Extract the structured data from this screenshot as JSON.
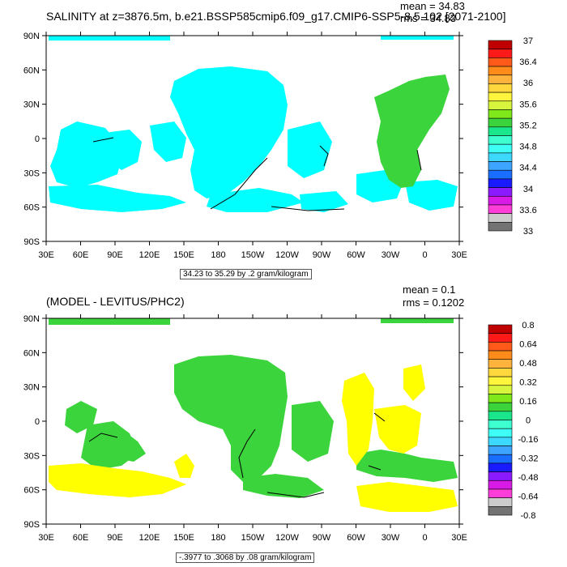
{
  "chart_data": [
    {
      "type": "heatmap",
      "title": "SALINITY at z=3876.5m, b.e21.BSSP585cmip6.f09_g17.CMIP6-SSP5-8.5.102 [2071-2100]",
      "mean_label": "mean = 34.83",
      "rms_label": "rms = 34.83",
      "contour_note": "34.23 to 35.29 by .2 gram/kilogram",
      "x_ticks": [
        "30E",
        "60E",
        "90E",
        "120E",
        "150E",
        "180",
        "150W",
        "120W",
        "90W",
        "60W",
        "30W",
        "0",
        "30E"
      ],
      "y_ticks": [
        "90N",
        "60N",
        "30N",
        "0",
        "30S",
        "60S",
        "90S"
      ],
      "colorbar": {
        "labels": [
          "37",
          "36.4",
          "36",
          "35.6",
          "35.2",
          "34.8",
          "34.4",
          "34",
          "33.6",
          "33"
        ],
        "colors": [
          "#c00000",
          "#ff1a1a",
          "#ff5a1a",
          "#ff8c1a",
          "#ffb33d",
          "#ffd83d",
          "#fff53d",
          "#d8f53d",
          "#7ee81a",
          "#3cd43c",
          "#1ae68c",
          "#3dffd0",
          "#3dfff5",
          "#3dd8ff",
          "#3da5ff",
          "#1a6eff",
          "#1a1aff",
          "#8c1aff",
          "#d81ae6",
          "#ff3dd8",
          "#cccccc",
          "#737373"
        ]
      },
      "field_color": "#00ffff"
    },
    {
      "type": "heatmap",
      "title": "(MODEL - LEVITUS/PHC2)",
      "mean_label": "mean = 0.1",
      "rms_label": "rms = 0.1202",
      "contour_note": "-.3977 to .3068 by .08 gram/kilogram",
      "x_ticks": [
        "30E",
        "60E",
        "90E",
        "120E",
        "150E",
        "180",
        "150W",
        "120W",
        "90W",
        "60W",
        "30W",
        "0",
        "30E"
      ],
      "y_ticks": [
        "90N",
        "60N",
        "30N",
        "0",
        "30S",
        "60S",
        "90S"
      ],
      "colorbar": {
        "labels": [
          "0.8",
          "0.64",
          "0.48",
          "0.32",
          "0.16",
          "0",
          "-0.16",
          "-0.32",
          "-0.48",
          "-0.64",
          "-0.8"
        ],
        "colors": [
          "#c00000",
          "#ff1a1a",
          "#ff5a1a",
          "#ff8c1a",
          "#ffb33d",
          "#ffd83d",
          "#fff53d",
          "#d8f53d",
          "#7ee81a",
          "#3cd43c",
          "#1ae68c",
          "#3dffd0",
          "#3dfff5",
          "#3dd8ff",
          "#3da5ff",
          "#1a6eff",
          "#1a1aff",
          "#8c1aff",
          "#d81ae6",
          "#ff3dd8",
          "#cccccc",
          "#737373"
        ]
      },
      "field_color": "#3cd43c",
      "secondary_color": "#ffff00"
    }
  ]
}
